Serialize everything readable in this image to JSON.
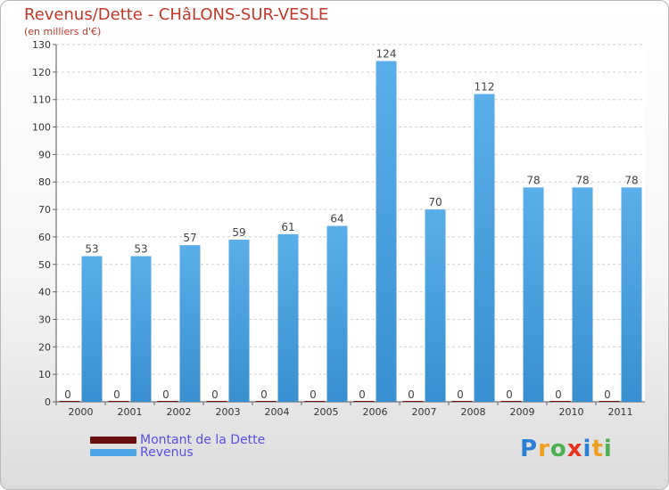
{
  "chart_data": {
    "type": "bar",
    "title": "Revenus/Dette - CHâLONS-SUR-VESLE",
    "subtitle": "(en milliers d'€)",
    "categories": [
      "2000",
      "2001",
      "2002",
      "2003",
      "2004",
      "2005",
      "2006",
      "2007",
      "2008",
      "2009",
      "2010",
      "2011"
    ],
    "series": [
      {
        "name": "Montant de la Dette",
        "color": "#7a1010",
        "values": [
          0,
          0,
          0,
          0,
          0,
          0,
          0,
          0,
          0,
          0,
          0,
          0
        ]
      },
      {
        "name": "Revenus",
        "color": "#55a8e6",
        "values": [
          53,
          53,
          57,
          59,
          61,
          64,
          124,
          70,
          112,
          78,
          78,
          78
        ]
      }
    ],
    "ylim": [
      0,
      130
    ],
    "yticks": [
      0,
      10,
      20,
      30,
      40,
      50,
      60,
      70,
      80,
      90,
      100,
      110,
      120,
      130
    ],
    "grid": true,
    "xlabel": "",
    "ylabel": ""
  },
  "legend": {
    "items": [
      {
        "label": "Montant de la Dette",
        "color": "#6b0f0f"
      },
      {
        "label": "Revenus",
        "color": "#4ea3e4"
      }
    ]
  },
  "logo": {
    "letters": [
      "P",
      "r",
      "o",
      "x",
      "i",
      "t",
      "i"
    ],
    "colors": [
      "#2b7fd4",
      "#f0a020",
      "#4caf50",
      "#e8321e",
      "#2b7fd4",
      "#f0a020",
      "#4caf50"
    ]
  }
}
